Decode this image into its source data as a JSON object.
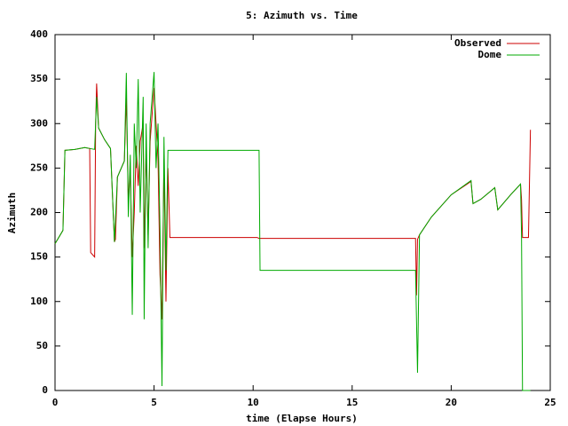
{
  "chart_data": {
    "type": "line",
    "title": "5: Azimuth vs. Time",
    "x_label": "time (Elapse Hours)",
    "y_label": "Azimuth",
    "xlim": [
      0,
      25
    ],
    "xticks": [
      0,
      5,
      10,
      15,
      20,
      25
    ],
    "ylim": [
      0,
      400
    ],
    "yticks": [
      0,
      50,
      100,
      150,
      200,
      250,
      300,
      350,
      400
    ],
    "grid": false,
    "legend": "top-right",
    "series": [
      {
        "name": "Observed",
        "color": "#cc0000",
        "x": [
          0,
          0.4,
          0.5,
          1.0,
          1.5,
          1.75,
          1.8,
          2.0,
          2.05,
          2.1,
          2.2,
          2.5,
          2.8,
          3.0,
          3.05,
          3.15,
          3.5,
          3.6,
          3.7,
          3.8,
          3.9,
          4.0,
          4.1,
          4.2,
          4.3,
          4.45,
          4.5,
          4.6,
          4.7,
          4.8,
          5.0,
          5.1,
          5.2,
          5.3,
          5.4,
          5.5,
          5.6,
          5.7,
          5.8,
          10.2,
          10.3,
          18.2,
          18.25,
          18.3,
          18.4,
          19.0,
          20.0,
          21.0,
          21.1,
          21.5,
          22.2,
          22.35,
          23.0,
          23.5,
          23.55,
          23.6,
          23.9,
          24.0
        ],
        "values": [
          165,
          180,
          270,
          271,
          273,
          272,
          155,
          150,
          300,
          345,
          295,
          282,
          272,
          167,
          170,
          240,
          258,
          330,
          215,
          245,
          150,
          200,
          275,
          230,
          280,
          300,
          160,
          270,
          175,
          280,
          340,
          300,
          260,
          130,
          80,
          260,
          100,
          250,
          172,
          172,
          171,
          171,
          107,
          170,
          175,
          195,
          220,
          235,
          210,
          215,
          228,
          203,
          220,
          232,
          215,
          172,
          172,
          293
        ]
      },
      {
        "name": "Dome",
        "color": "#00aa00",
        "x": [
          0,
          0.4,
          0.5,
          1.0,
          1.5,
          1.75,
          2.0,
          2.1,
          2.2,
          2.5,
          2.8,
          3.0,
          3.15,
          3.5,
          3.6,
          3.7,
          3.8,
          3.9,
          4.0,
          4.1,
          4.2,
          4.3,
          4.45,
          4.5,
          4.6,
          4.7,
          4.8,
          5.0,
          5.1,
          5.2,
          5.3,
          5.4,
          5.5,
          5.6,
          5.7,
          5.8,
          10.3,
          10.35,
          18.2,
          18.3,
          18.4,
          19.0,
          20.0,
          21.0,
          21.1,
          21.5,
          22.2,
          22.35,
          23.0,
          23.5,
          23.55,
          23.6,
          24.0
        ],
        "values": [
          165,
          180,
          270,
          271,
          273,
          272,
          271,
          330,
          295,
          282,
          272,
          167,
          240,
          258,
          357,
          195,
          265,
          85,
          300,
          250,
          350,
          200,
          330,
          80,
          300,
          160,
          300,
          358,
          250,
          300,
          180,
          5,
          285,
          135,
          270,
          270,
          270,
          135,
          135,
          20,
          175,
          195,
          220,
          236,
          210,
          215,
          228,
          203,
          220,
          232,
          175,
          0,
          0
        ]
      }
    ]
  }
}
